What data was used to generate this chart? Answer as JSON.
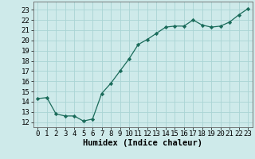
{
  "x": [
    0,
    1,
    2,
    3,
    4,
    5,
    6,
    7,
    8,
    9,
    10,
    11,
    12,
    13,
    14,
    15,
    16,
    17,
    18,
    19,
    20,
    21,
    22,
    23
  ],
  "y": [
    14.3,
    14.4,
    12.8,
    12.6,
    12.6,
    12.1,
    12.3,
    14.8,
    15.8,
    17.0,
    18.2,
    19.6,
    20.1,
    20.7,
    21.3,
    21.4,
    21.4,
    22.0,
    21.5,
    21.3,
    21.4,
    21.8,
    22.5,
    23.1
  ],
  "line_color": "#1a6b5a",
  "marker": "D",
  "marker_size": 2.2,
  "bg_color": "#ceeaea",
  "grid_color": "#aad4d4",
  "xlabel": "Humidex (Indice chaleur)",
  "xlabel_fontsize": 7.5,
  "tick_fontsize": 6.5,
  "ylim": [
    11.5,
    23.8
  ],
  "xlim": [
    -0.5,
    23.5
  ],
  "yticks": [
    12,
    13,
    14,
    15,
    16,
    17,
    18,
    19,
    20,
    21,
    22,
    23
  ],
  "xticks": [
    0,
    1,
    2,
    3,
    4,
    5,
    6,
    7,
    8,
    9,
    10,
    11,
    12,
    13,
    14,
    15,
    16,
    17,
    18,
    19,
    20,
    21,
    22,
    23
  ]
}
